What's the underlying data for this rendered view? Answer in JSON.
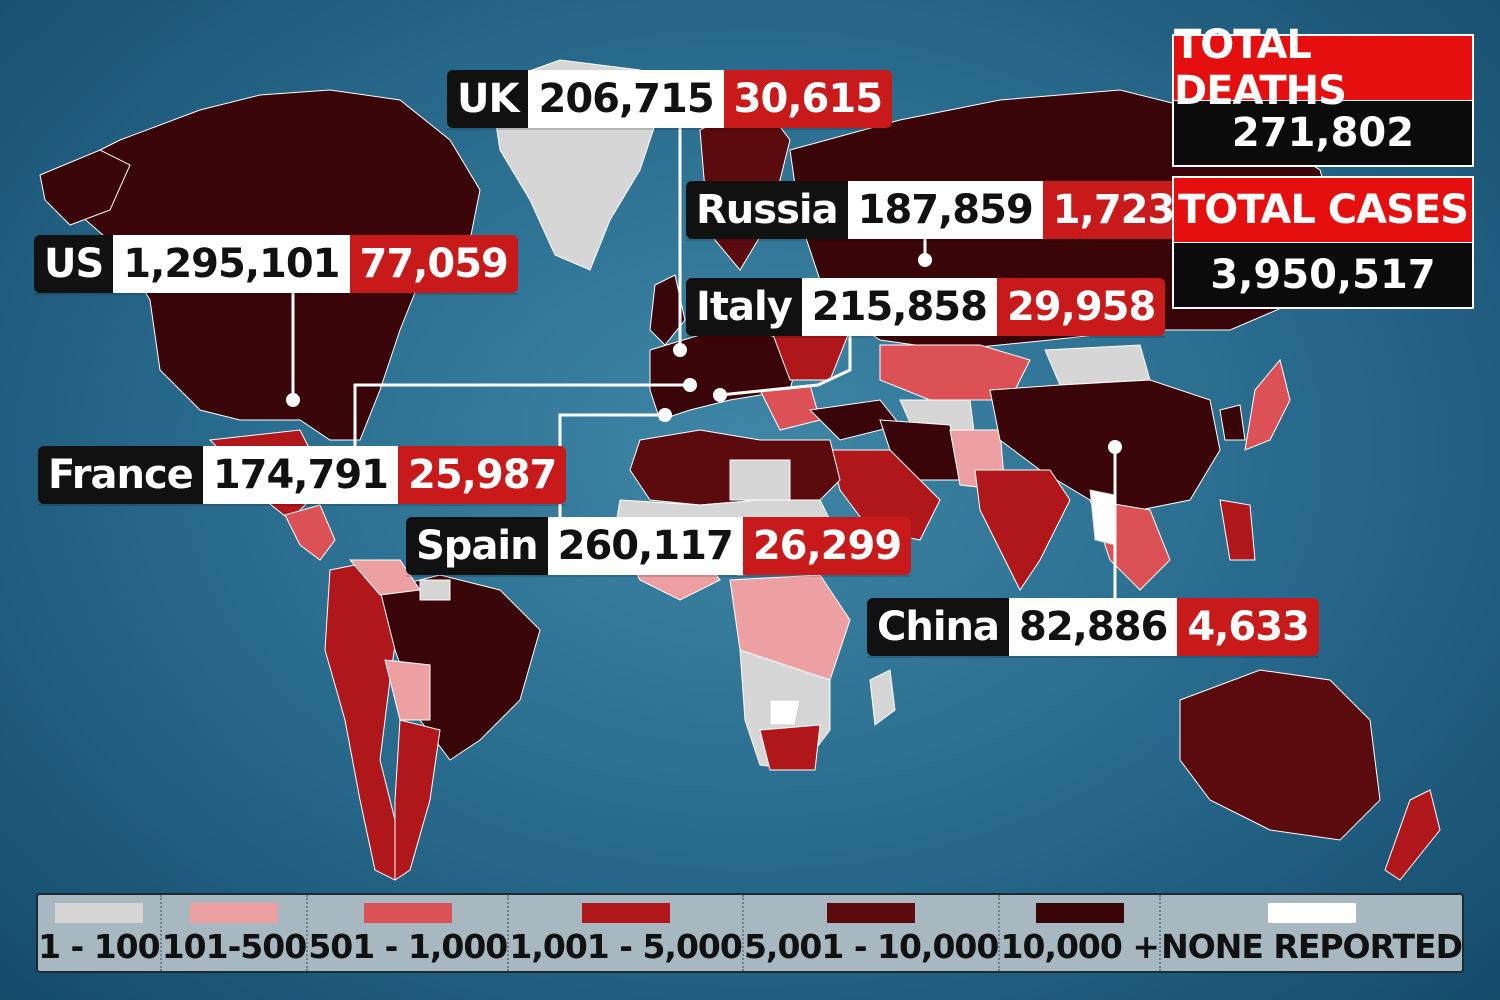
{
  "colors": {
    "range_1_100": "#d6d6d6",
    "range_101_500": "#eca0a2",
    "range_501_1000": "#dc5155",
    "range_1001_5000": "#b0171b",
    "range_5001_10000": "#5b0b0e",
    "range_10000_plus": "#3a0508",
    "none_reported": "#ffffff",
    "deaths_red": "#c81a1a",
    "total_header_red": "#e50f0f"
  },
  "callouts": [
    {
      "country": "UK",
      "cases": "206,715",
      "deaths": "30,615"
    },
    {
      "country": "Russia",
      "cases": "187,859",
      "deaths": "1,723"
    },
    {
      "country": "US",
      "cases": "1,295,101",
      "deaths": "77,059"
    },
    {
      "country": "Italy",
      "cases": "215,858",
      "deaths": "29,958"
    },
    {
      "country": "France",
      "cases": "174,791",
      "deaths": "25,987"
    },
    {
      "country": "Spain",
      "cases": "260,117",
      "deaths": "26,299"
    },
    {
      "country": "China",
      "cases": "82,886",
      "deaths": "4,633"
    }
  ],
  "totals": {
    "deaths_label": "TOTAL DEATHS",
    "deaths_value": "271,802",
    "cases_label": "TOTAL CASES",
    "cases_value": "3,950,517"
  },
  "legend": [
    {
      "label": "1 - 100",
      "color_key": "range_1_100"
    },
    {
      "label": "101-500",
      "color_key": "range_101_500"
    },
    {
      "label": "501 - 1,000",
      "color_key": "range_501_1000"
    },
    {
      "label": "1,001 - 5,000",
      "color_key": "range_1001_5000"
    },
    {
      "label": "5,001 - 10,000",
      "color_key": "range_5001_10000"
    },
    {
      "label": "10,000 +",
      "color_key": "range_10000_plus"
    },
    {
      "label": "NONE REPORTED",
      "color_key": "none_reported"
    }
  ]
}
